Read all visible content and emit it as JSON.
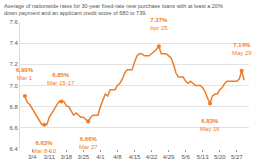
{
  "chart_data": {
    "type": "line",
    "title": "Average of nationwide rates for 30-year fixed-rate new purchase loans with at least a 20% down payment and an applicant credit score of 680 to 739.",
    "color": "#ee7d2b",
    "grid": true,
    "categories": [
      null,
      null,
      null,
      "3/4",
      null,
      null,
      null,
      null,
      null,
      null,
      "3/11",
      null,
      null,
      null,
      null,
      null,
      null,
      "3/18",
      null,
      null,
      null,
      null,
      null,
      null,
      "3/25",
      null,
      null,
      null,
      null,
      null,
      null,
      "4/1",
      null,
      null,
      null,
      null,
      null,
      null,
      "4/8",
      null,
      null,
      null,
      null,
      null,
      null,
      "4/15",
      null,
      null,
      null,
      null,
      null,
      null,
      "4/22",
      null,
      null,
      null,
      null,
      null,
      null,
      "4/29",
      null,
      null,
      null,
      null,
      null,
      null,
      "5/6",
      null,
      null,
      null,
      null,
      null,
      null,
      "5/13",
      null,
      null,
      null,
      null,
      null,
      null,
      "5/20",
      null,
      null,
      null,
      null,
      null,
      null,
      "5/27",
      null,
      null,
      null
    ],
    "values": [
      6.9,
      6.84,
      6.82,
      6.78,
      6.74,
      6.7,
      6.66,
      6.63,
      6.63,
      6.63,
      6.7,
      6.74,
      6.78,
      6.82,
      6.85,
      6.85,
      6.85,
      6.81,
      6.8,
      6.76,
      6.72,
      6.74,
      6.72,
      6.7,
      6.7,
      6.68,
      6.66,
      6.7,
      6.72,
      6.72,
      6.72,
      6.8,
      6.86,
      6.92,
      6.9,
      6.96,
      6.96,
      6.96,
      7.0,
      7.02,
      7.06,
      7.12,
      7.15,
      7.15,
      7.15,
      7.22,
      7.28,
      7.3,
      7.3,
      7.28,
      7.28,
      7.28,
      7.3,
      7.32,
      7.34,
      7.37,
      7.3,
      7.3,
      7.3,
      7.28,
      7.26,
      7.2,
      7.12,
      7.08,
      7.08,
      7.08,
      7.04,
      7.02,
      7.04,
      7.02,
      7.0,
      7.0,
      7.0,
      6.98,
      6.94,
      6.88,
      6.83,
      6.9,
      6.92,
      6.92,
      6.96,
      6.98,
      7.02,
      7.04,
      7.04,
      7.04,
      7.04,
      7.04,
      7.06,
      7.14,
      7.05
    ],
    "ylim": [
      6.4,
      7.6
    ],
    "yticks": [
      6.4,
      6.6,
      6.8,
      {
        "value": 7,
        "label": "7.0"
      },
      7.2,
      7.4,
      7.6
    ],
    "annotations": [
      {
        "index": 0,
        "value": 6.9,
        "value_label": "6.90%",
        "label": "Mar 1"
      },
      {
        "index": 8,
        "value": 6.63,
        "value_label": "6.63%",
        "label": "Mar 8-10"
      },
      {
        "index": 15,
        "value": 6.85,
        "value_label": "6.85%",
        "label": "Mar 15-17"
      },
      {
        "index": 26,
        "value": 6.66,
        "value_label": "6.66%",
        "label": "Mar 27"
      },
      {
        "index": 55,
        "value": 7.37,
        "value_label": "7.37%",
        "label": "Apr 25"
      },
      {
        "index": 76,
        "value": 6.83,
        "value_label": "6.83%",
        "label": "May 16"
      },
      {
        "index": 89,
        "value": 7.14,
        "value_label": "7.14%",
        "label": "May 29"
      }
    ]
  }
}
